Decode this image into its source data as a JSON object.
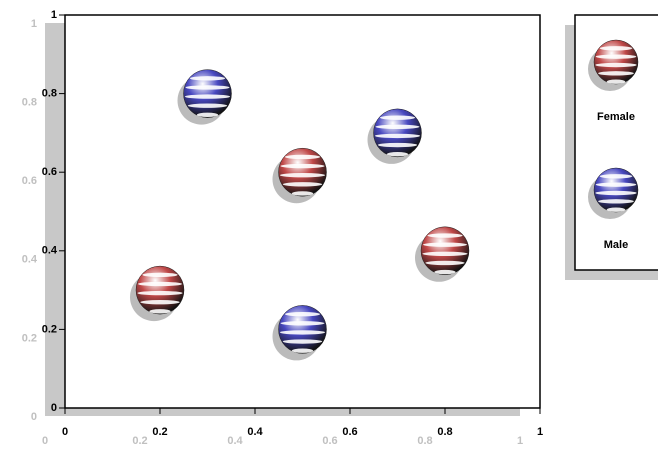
{
  "chart_data": {
    "type": "scatter",
    "series": [
      {
        "name": "Female",
        "color": "#c04848",
        "x": [
          0.2,
          0.5,
          0.8
        ],
        "values": [
          0.3,
          0.6,
          0.4
        ]
      },
      {
        "name": "Male",
        "color": "#4848c0",
        "x": [
          0.3,
          0.7,
          0.5
        ],
        "values": [
          0.8,
          0.7,
          0.2
        ]
      }
    ],
    "xlim": [
      0,
      1
    ],
    "ylim": [
      0,
      1
    ],
    "xticks": [
      0,
      0.2,
      0.4,
      0.6,
      0.8,
      1
    ],
    "yticks": [
      0,
      0.2,
      0.4,
      0.6,
      0.8,
      1
    ]
  }
}
